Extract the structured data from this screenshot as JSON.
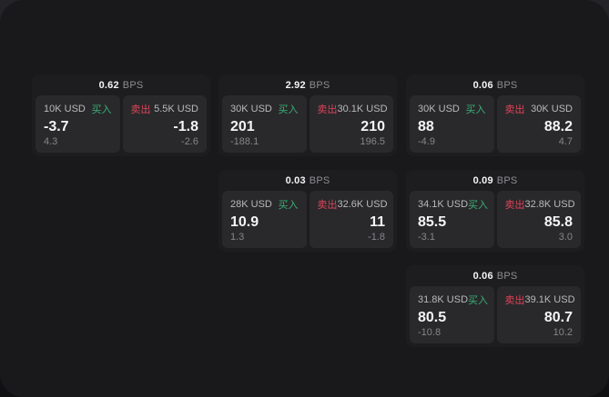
{
  "colors": {
    "buy-green": "#3aae77",
    "sell-red": "#df4359",
    "panel-bg": "#19191b",
    "card-bg": "#1d1d1f",
    "tile-bg": "#29292b"
  },
  "cards": [
    {
      "spread": "0.62",
      "unit": "BPS",
      "buy": {
        "amount": "10K USD",
        "tag": "买入",
        "price": "-3.7",
        "delta": "4.3"
      },
      "sell": {
        "tag": "卖出",
        "amount": "5.5K USD",
        "price": "-1.8",
        "delta": "-2.6"
      }
    },
    {
      "spread": "2.92",
      "unit": "BPS",
      "buy": {
        "amount": "30K USD",
        "tag": "买入",
        "price": "201",
        "delta": "-188.1"
      },
      "sell": {
        "tag": "卖出",
        "amount": "30.1K USD",
        "price": "210",
        "delta": "196.5"
      }
    },
    {
      "spread": "0.06",
      "unit": "BPS",
      "buy": {
        "amount": "30K USD",
        "tag": "买入",
        "price": "88",
        "delta": "-4.9"
      },
      "sell": {
        "tag": "卖出",
        "amount": "30K USD",
        "price": "88.2",
        "delta": "4.7"
      }
    },
    {
      "spread": "0.03",
      "unit": "BPS",
      "buy": {
        "amount": "28K USD",
        "tag": "买入",
        "price": "10.9",
        "delta": "1.3"
      },
      "sell": {
        "tag": "卖出",
        "amount": "32.6K USD",
        "price": "11",
        "delta": "-1.8"
      }
    },
    {
      "spread": "0.09",
      "unit": "BPS",
      "buy": {
        "amount": "34.1K USD",
        "tag": "买入",
        "price": "85.5",
        "delta": "-3.1"
      },
      "sell": {
        "tag": "卖出",
        "amount": "32.8K USD",
        "price": "85.8",
        "delta": "3.0"
      }
    },
    {
      "spread": "0.06",
      "unit": "BPS",
      "buy": {
        "amount": "31.8K USD",
        "tag": "买入",
        "price": "80.5",
        "delta": "-10.8"
      },
      "sell": {
        "tag": "卖出",
        "amount": "39.1K USD",
        "price": "80.7",
        "delta": "10.2"
      }
    }
  ]
}
